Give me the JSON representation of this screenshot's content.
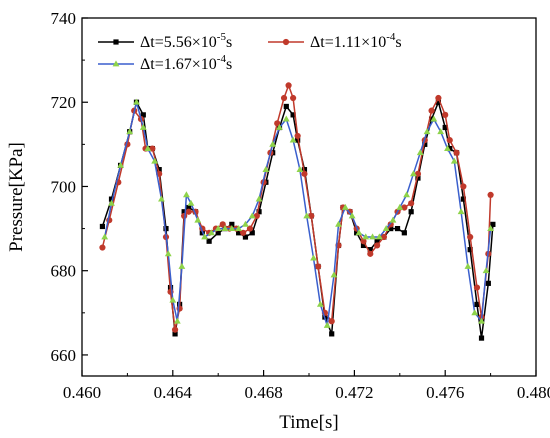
{
  "chart_data": {
    "type": "line",
    "xlabel": "Time[s]",
    "ylabel": "Pressure[KPa]",
    "xlim": [
      0.46,
      0.48
    ],
    "ylim": [
      655,
      740
    ],
    "x_ticks": [
      "0.460",
      "0.464",
      "0.468",
      "0.472",
      "0.476",
      "0.480"
    ],
    "x_tick_values": [
      0.46,
      0.464,
      0.468,
      0.472,
      0.476,
      0.48
    ],
    "y_ticks": [
      "660",
      "680",
      "700",
      "720",
      "740"
    ],
    "y_tick_values": [
      660,
      680,
      700,
      720,
      740
    ],
    "grid": false,
    "legend_position": "top",
    "series": [
      {
        "name": "Δt=5.56×10-5s",
        "legend_main": "Δt=5.56×10",
        "legend_exp": "-5",
        "legend_unit": "s",
        "color": "#000000",
        "marker": "square",
        "points": [
          [
            0.4609,
            690.5
          ],
          [
            0.4613,
            697
          ],
          [
            0.4617,
            705
          ],
          [
            0.4621,
            713
          ],
          [
            0.4624,
            720
          ],
          [
            0.4627,
            717
          ],
          [
            0.4629,
            709
          ],
          [
            0.4631,
            709
          ],
          [
            0.4634,
            704
          ],
          [
            0.4637,
            690
          ],
          [
            0.4639,
            676
          ],
          [
            0.4641,
            665
          ],
          [
            0.4643,
            672
          ],
          [
            0.4645,
            694
          ],
          [
            0.4647,
            695
          ],
          [
            0.465,
            694
          ],
          [
            0.4653,
            689
          ],
          [
            0.4656,
            687
          ],
          [
            0.466,
            689
          ],
          [
            0.4663,
            690
          ],
          [
            0.4666,
            691
          ],
          [
            0.4669,
            689
          ],
          [
            0.4672,
            688
          ],
          [
            0.4675,
            689
          ],
          [
            0.4678,
            694
          ],
          [
            0.4681,
            701
          ],
          [
            0.4684,
            708
          ],
          [
            0.4687,
            714
          ],
          [
            0.469,
            719
          ],
          [
            0.4693,
            717
          ],
          [
            0.4695,
            711
          ],
          [
            0.4698,
            704
          ],
          [
            0.4701,
            693
          ],
          [
            0.4704,
            681
          ],
          [
            0.4707,
            669
          ],
          [
            0.471,
            665
          ],
          [
            0.4713,
            686
          ],
          [
            0.4715,
            695
          ],
          [
            0.4718,
            694
          ],
          [
            0.4721,
            689
          ],
          [
            0.4724,
            686
          ],
          [
            0.4727,
            685
          ],
          [
            0.473,
            687
          ],
          [
            0.4733,
            688
          ],
          [
            0.4736,
            690
          ],
          [
            0.4739,
            690
          ],
          [
            0.4742,
            689
          ],
          [
            0.4745,
            694
          ],
          [
            0.4748,
            702
          ],
          [
            0.4751,
            710
          ],
          [
            0.4754,
            716
          ],
          [
            0.4757,
            720
          ],
          [
            0.476,
            714
          ],
          [
            0.4762,
            709
          ],
          [
            0.4765,
            708
          ],
          [
            0.4768,
            697
          ],
          [
            0.4771,
            685
          ],
          [
            0.4774,
            672
          ],
          [
            0.4776,
            664
          ],
          [
            0.4779,
            677
          ],
          [
            0.4781,
            691
          ]
        ]
      },
      {
        "name": "Δt=1.11×10-4s",
        "legend_main": "Δt=1.11×10",
        "legend_exp": "-4",
        "legend_unit": "s",
        "color": "#c0392b",
        "marker": "circle",
        "points": [
          [
            0.4609,
            685.5
          ],
          [
            0.4612,
            692
          ],
          [
            0.4616,
            701
          ],
          [
            0.462,
            710
          ],
          [
            0.4623,
            718
          ],
          [
            0.4626,
            716
          ],
          [
            0.4628,
            709
          ],
          [
            0.4631,
            709
          ],
          [
            0.4634,
            703
          ],
          [
            0.4637,
            688
          ],
          [
            0.4639,
            675
          ],
          [
            0.4641,
            666
          ],
          [
            0.4643,
            671
          ],
          [
            0.4645,
            693
          ],
          [
            0.4647,
            694
          ],
          [
            0.465,
            694
          ],
          [
            0.4653,
            690
          ],
          [
            0.4656,
            689
          ],
          [
            0.4659,
            690
          ],
          [
            0.4662,
            691
          ],
          [
            0.4665,
            690
          ],
          [
            0.4668,
            690
          ],
          [
            0.4671,
            689
          ],
          [
            0.4674,
            690
          ],
          [
            0.4677,
            693
          ],
          [
            0.468,
            701
          ],
          [
            0.4683,
            708
          ],
          [
            0.4686,
            715
          ],
          [
            0.4689,
            721
          ],
          [
            0.4691,
            724
          ],
          [
            0.4693,
            721
          ],
          [
            0.4695,
            712
          ],
          [
            0.4698,
            703
          ],
          [
            0.4701,
            693
          ],
          [
            0.4704,
            681
          ],
          [
            0.4707,
            670
          ],
          [
            0.471,
            668
          ],
          [
            0.4713,
            686
          ],
          [
            0.4715,
            695
          ],
          [
            0.4718,
            694
          ],
          [
            0.4721,
            690
          ],
          [
            0.4724,
            687
          ],
          [
            0.4727,
            684
          ],
          [
            0.473,
            686
          ],
          [
            0.4733,
            688
          ],
          [
            0.4736,
            691
          ],
          [
            0.4739,
            694
          ],
          [
            0.4742,
            695
          ],
          [
            0.4745,
            696
          ],
          [
            0.4748,
            703
          ],
          [
            0.4751,
            711
          ],
          [
            0.4754,
            718
          ],
          [
            0.4757,
            721
          ],
          [
            0.476,
            717
          ],
          [
            0.4762,
            711
          ],
          [
            0.4765,
            708
          ],
          [
            0.4768,
            700
          ],
          [
            0.4771,
            688
          ],
          [
            0.4774,
            676
          ],
          [
            0.4776,
            669
          ],
          [
            0.4779,
            684
          ],
          [
            0.478,
            698
          ]
        ]
      },
      {
        "name": "Δt=1.67×10-4s",
        "legend_main": "Δt=1.67×10",
        "legend_exp": "-4",
        "legend_unit": "s",
        "color": "#3a5fcd",
        "marker": "triangle",
        "marker_color": "#8ed34a",
        "points": [
          [
            0.461,
            688
          ],
          [
            0.4613,
            696
          ],
          [
            0.4617,
            705
          ],
          [
            0.4621,
            713
          ],
          [
            0.4624,
            720
          ],
          [
            0.4627,
            714
          ],
          [
            0.4629,
            709
          ],
          [
            0.4632,
            706
          ],
          [
            0.4635,
            697
          ],
          [
            0.4638,
            684
          ],
          [
            0.464,
            673
          ],
          [
            0.4642,
            668
          ],
          [
            0.4644,
            681
          ],
          [
            0.4646,
            698
          ],
          [
            0.4648,
            696
          ],
          [
            0.4651,
            692
          ],
          [
            0.4654,
            688
          ],
          [
            0.4657,
            689
          ],
          [
            0.466,
            690
          ],
          [
            0.4663,
            690
          ],
          [
            0.4666,
            690
          ],
          [
            0.4669,
            690
          ],
          [
            0.4672,
            691
          ],
          [
            0.4675,
            693
          ],
          [
            0.4678,
            697
          ],
          [
            0.4681,
            704
          ],
          [
            0.4684,
            710
          ],
          [
            0.4687,
            714
          ],
          [
            0.469,
            716
          ],
          [
            0.4693,
            711
          ],
          [
            0.4696,
            704
          ],
          [
            0.4699,
            693
          ],
          [
            0.4702,
            683
          ],
          [
            0.4705,
            672
          ],
          [
            0.4708,
            667
          ],
          [
            0.4711,
            679
          ],
          [
            0.4713,
            691
          ],
          [
            0.4716,
            695
          ],
          [
            0.4719,
            693
          ],
          [
            0.4722,
            689
          ],
          [
            0.4725,
            688
          ],
          [
            0.4728,
            688
          ],
          [
            0.4731,
            688
          ],
          [
            0.4734,
            690
          ],
          [
            0.4737,
            692
          ],
          [
            0.474,
            695
          ],
          [
            0.4743,
            698
          ],
          [
            0.4746,
            703
          ],
          [
            0.4749,
            708
          ],
          [
            0.4752,
            713
          ],
          [
            0.4755,
            716
          ],
          [
            0.4758,
            713
          ],
          [
            0.4761,
            709
          ],
          [
            0.4764,
            706
          ],
          [
            0.4767,
            694
          ],
          [
            0.477,
            681
          ],
          [
            0.4773,
            670
          ],
          [
            0.4776,
            668
          ],
          [
            0.4778,
            680
          ],
          [
            0.478,
            690
          ]
        ]
      }
    ]
  }
}
